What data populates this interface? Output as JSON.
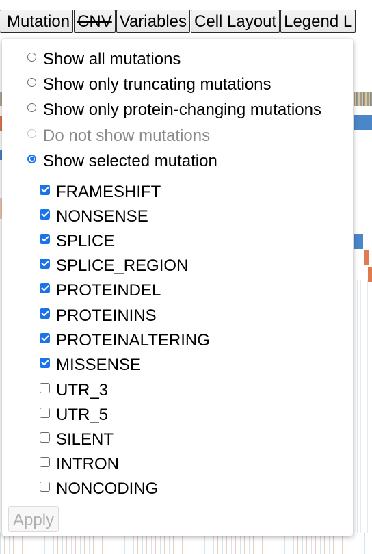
{
  "tabs": [
    {
      "label": "Mutation",
      "struck": false
    },
    {
      "label": "CNV",
      "struck": true
    },
    {
      "label": "Variables",
      "struck": false
    },
    {
      "label": "Cell Layout",
      "struck": false
    },
    {
      "label": "Legend L",
      "struck": false
    }
  ],
  "mutation_menu": {
    "radio_options": [
      {
        "label": "Show all mutations",
        "selected": false,
        "disabled": false
      },
      {
        "label": "Show only truncating mutations",
        "selected": false,
        "disabled": false
      },
      {
        "label": "Show only protein-changing mutations",
        "selected": false,
        "disabled": false
      },
      {
        "label": "Do not show mutations",
        "selected": false,
        "disabled": true
      },
      {
        "label": "Show selected mutation",
        "selected": true,
        "disabled": false
      }
    ],
    "checkbox_options": [
      {
        "label": "FRAMESHIFT",
        "checked": true
      },
      {
        "label": "NONSENSE",
        "checked": true
      },
      {
        "label": "SPLICE",
        "checked": true
      },
      {
        "label": "SPLICE_REGION",
        "checked": true
      },
      {
        "label": "PROTEINDEL",
        "checked": true
      },
      {
        "label": "PROTEININS",
        "checked": true
      },
      {
        "label": "PROTEINALTERING",
        "checked": true
      },
      {
        "label": "MISSENSE",
        "checked": true
      },
      {
        "label": "UTR_3",
        "checked": false
      },
      {
        "label": "UTR_5",
        "checked": false
      },
      {
        "label": "SILENT",
        "checked": false
      },
      {
        "label": "INTRON",
        "checked": false
      },
      {
        "label": "NONCODING",
        "checked": false
      }
    ],
    "apply_label": "Apply",
    "apply_disabled": true
  },
  "colors": {
    "accent": "#1a73e8",
    "disabled_text": "#8a8a8a",
    "heatmap_blue": "#4a86c8",
    "heatmap_orange": "#e07a4f"
  }
}
